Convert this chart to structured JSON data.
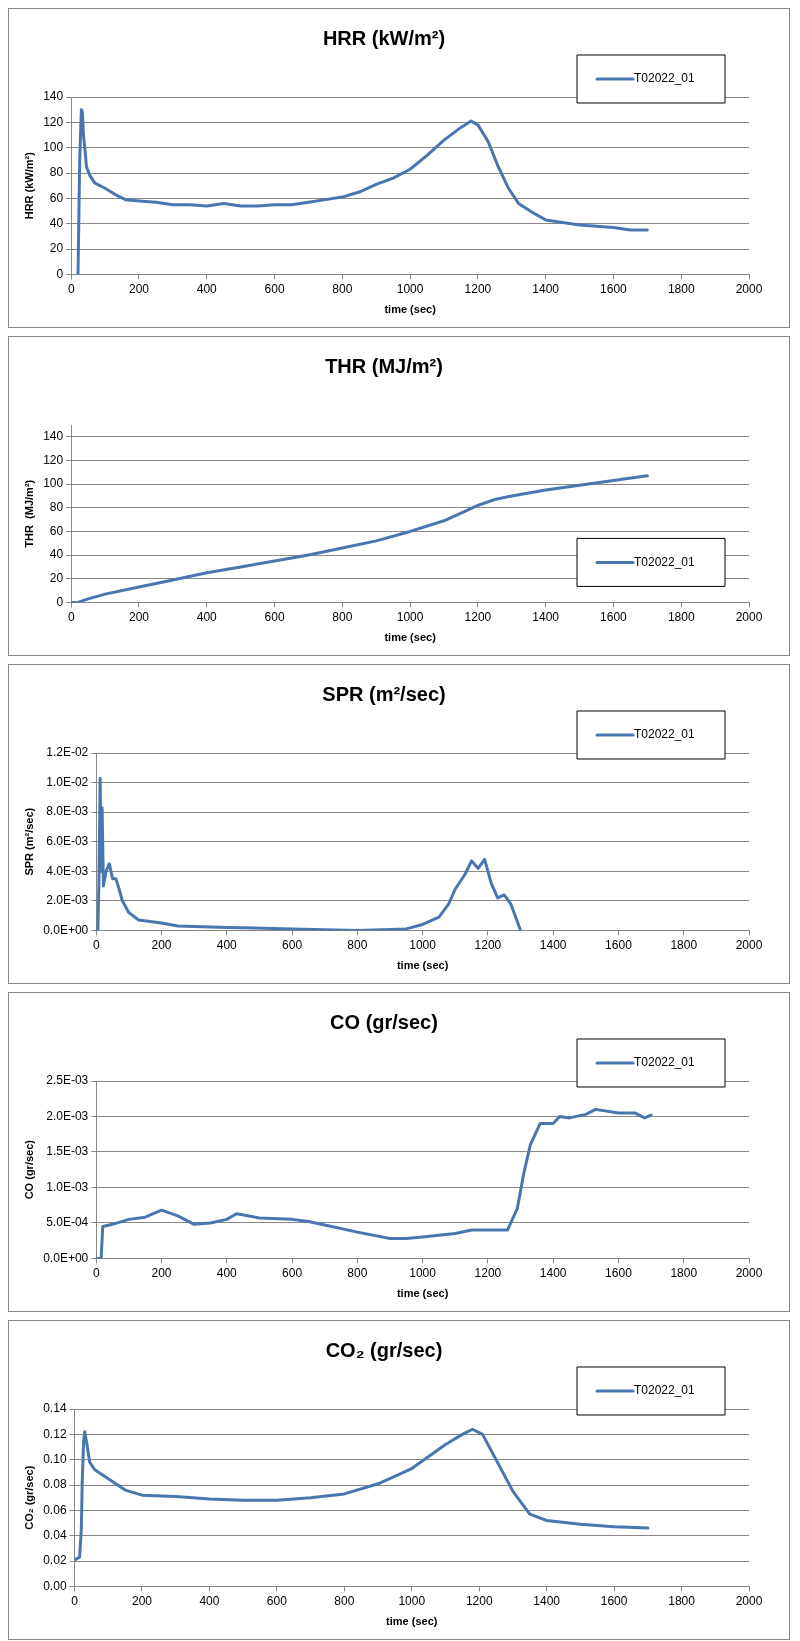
{
  "chart_data": [
    {
      "type": "line",
      "title": "HRR (kW/m²)",
      "xlabel": "time (sec)",
      "ylabel": "HRR (kW/m²)",
      "xlim": [
        0,
        2000
      ],
      "xticks": [
        0,
        200,
        400,
        600,
        800,
        1000,
        1200,
        1400,
        1600,
        1800,
        2000
      ],
      "ylim": [
        0,
        140
      ],
      "yticks": [
        0,
        20,
        40,
        60,
        80,
        100,
        120,
        140
      ],
      "grid": "y",
      "legend": "top right",
      "marker": "none",
      "line_style": "solid",
      "series": [
        {
          "name": "T02022_01",
          "color": "#4a76b0",
          "x": [
            20,
            22,
            25,
            28,
            30,
            33,
            36,
            40,
            45,
            55,
            70,
            100,
            130,
            160,
            200,
            250,
            300,
            350,
            400,
            450,
            500,
            550,
            600,
            650,
            700,
            750,
            800,
            850,
            900,
            950,
            1000,
            1050,
            1100,
            1150,
            1180,
            1200,
            1230,
            1260,
            1290,
            1320,
            1360,
            1400,
            1450,
            1500,
            1550,
            1600,
            1650,
            1700
          ],
          "values": [
            0,
            35,
            90,
            115,
            130,
            128,
            110,
            100,
            85,
            78,
            72,
            68,
            63,
            59,
            58,
            57,
            55,
            55,
            54,
            56,
            54,
            54,
            55,
            55,
            57,
            59,
            61,
            65,
            71,
            76,
            83,
            94,
            106,
            116,
            121,
            118,
            105,
            85,
            68,
            56,
            49,
            43,
            41,
            39,
            38,
            37,
            35,
            35
          ]
        }
      ]
    },
    {
      "type": "line",
      "title": "THR (MJ/m²)",
      "xlabel": "time (sec)",
      "ylabel": "THR  (MJ/m²)",
      "xlim": [
        0,
        2000
      ],
      "xticks": [
        0,
        200,
        400,
        600,
        800,
        1000,
        1200,
        1400,
        1600,
        1800,
        2000
      ],
      "ylim": [
        0,
        150
      ],
      "yticks": [
        0,
        20,
        40,
        60,
        80,
        100,
        120,
        140
      ],
      "grid": "y",
      "legend": "bottom right",
      "marker": "none",
      "line_style": "solid",
      "series": [
        {
          "name": "T02022_01",
          "color": "#4a76b0",
          "x": [
            0,
            20,
            50,
            100,
            200,
            300,
            400,
            500,
            600,
            700,
            800,
            900,
            1000,
            1100,
            1200,
            1250,
            1300,
            1400,
            1500,
            1600,
            1700
          ],
          "values": [
            0,
            0,
            3,
            7,
            13,
            19,
            25,
            30,
            35,
            40,
            46,
            52,
            60,
            69,
            82,
            87,
            90,
            95,
            99,
            103,
            107
          ]
        }
      ]
    },
    {
      "type": "line",
      "title": "SPR (m²/sec)",
      "xlabel": "time (sec)",
      "ylabel": "SPR (m²/sec)",
      "xlim": [
        0,
        2000
      ],
      "xticks": [
        0,
        200,
        400,
        600,
        800,
        1000,
        1200,
        1400,
        1600,
        1800,
        2000
      ],
      "ylim": [
        0,
        0.012
      ],
      "yticks": [
        {
          "value": 0,
          "label": "0.0E+00"
        },
        {
          "value": 0.002,
          "label": "2.0E-03"
        },
        {
          "value": 0.004,
          "label": "4.0E-03"
        },
        {
          "value": 0.006,
          "label": "6.0E-03"
        },
        {
          "value": 0.008,
          "label": "8.0E-03"
        },
        {
          "value": 0.01,
          "label": "1.0E-02"
        },
        {
          "value": 0.012,
          "label": "1.2E-02"
        }
      ],
      "grid": "y",
      "legend": "top right",
      "marker": "none",
      "line_style": "solid",
      "series": [
        {
          "name": "T02022_01",
          "color": "#4a76b0",
          "x": [
            5,
            8,
            12,
            15,
            18,
            22,
            30,
            40,
            50,
            60,
            70,
            80,
            100,
            130,
            200,
            250,
            400,
            600,
            800,
            950,
            1000,
            1050,
            1080,
            1100,
            1130,
            1150,
            1170,
            1190,
            1210,
            1230,
            1250,
            1270,
            1290,
            1300
          ],
          "values": [
            0,
            0.003,
            0.0103,
            0.004,
            0.0083,
            0.003,
            0.004,
            0.0045,
            0.0035,
            0.0035,
            0.0028,
            0.002,
            0.0012,
            0.0007,
            0.0005,
            0.0003,
            0.0002,
            0.0001,
            0,
            0.0001,
            0.0004,
            0.0009,
            0.0018,
            0.0028,
            0.0038,
            0.0047,
            0.0042,
            0.0048,
            0.0032,
            0.0022,
            0.0024,
            0.0018,
            0.0006,
            0
          ]
        }
      ]
    },
    {
      "type": "line",
      "title": "CO (gr/sec)",
      "xlabel": "time (sec)",
      "ylabel": "CO (gr/sec)",
      "xlim": [
        0,
        2000
      ],
      "xticks": [
        0,
        200,
        400,
        600,
        800,
        1000,
        1200,
        1400,
        1600,
        1800,
        2000
      ],
      "ylim": [
        0,
        0.0025
      ],
      "yticks": [
        {
          "value": 0,
          "label": "0.0E+00"
        },
        {
          "value": 0.0005,
          "label": "5.0E-04"
        },
        {
          "value": 0.001,
          "label": "1.0E-03"
        },
        {
          "value": 0.0015,
          "label": "1.5E-03"
        },
        {
          "value": 0.002,
          "label": "2.0E-03"
        },
        {
          "value": 0.0025,
          "label": "2.5E-03"
        }
      ],
      "grid": "y",
      "legend": "top right",
      "marker": "none",
      "line_style": "solid",
      "series": [
        {
          "name": "T02022_01",
          "color": "#4a76b0",
          "x": [
            0,
            15,
            20,
            50,
            100,
            150,
            200,
            250,
            300,
            350,
            400,
            430,
            500,
            600,
            650,
            700,
            800,
            900,
            950,
            1000,
            1100,
            1150,
            1200,
            1260,
            1290,
            1310,
            1330,
            1360,
            1400,
            1420,
            1450,
            1500,
            1530,
            1600,
            1650,
            1680,
            1700
          ],
          "values": [
            0,
            0,
            0.00045,
            0.00048,
            0.00055,
            0.00058,
            0.00068,
            0.0006,
            0.00048,
            0.0005,
            0.00055,
            0.00063,
            0.00057,
            0.00055,
            0.00052,
            0.00047,
            0.00037,
            0.00028,
            0.00028,
            0.0003,
            0.00035,
            0.0004,
            0.0004,
            0.0004,
            0.0007,
            0.0012,
            0.0016,
            0.0019,
            0.0019,
            0.002,
            0.00198,
            0.00203,
            0.0021,
            0.00205,
            0.00205,
            0.00198,
            0.00202
          ]
        }
      ]
    },
    {
      "type": "line",
      "title": "CO₂ (gr/sec)",
      "xlabel": "time (sec)",
      "ylabel": "CO₂ (gr/sec)",
      "xlim": [
        0,
        2000
      ],
      "xticks": [
        0,
        200,
        400,
        600,
        800,
        1000,
        1200,
        1400,
        1600,
        1800,
        2000
      ],
      "ylim": [
        0,
        0.14
      ],
      "yticks": [
        {
          "value": 0,
          "label": "0.00"
        },
        {
          "value": 0.02,
          "label": "0.02"
        },
        {
          "value": 0.04,
          "label": "0.04"
        },
        {
          "value": 0.06,
          "label": "0.06"
        },
        {
          "value": 0.08,
          "label": "0.08"
        },
        {
          "value": 0.1,
          "label": "0.10"
        },
        {
          "value": 0.12,
          "label": "0.12"
        },
        {
          "value": 0.14,
          "label": "0.14"
        }
      ],
      "grid": "y",
      "legend": "top right",
      "marker": "none",
      "line_style": "solid",
      "series": [
        {
          "name": "T02022_01",
          "color": "#4a76b0",
          "x": [
            0,
            15,
            20,
            23,
            27,
            30,
            35,
            45,
            60,
            100,
            150,
            200,
            300,
            400,
            500,
            600,
            700,
            800,
            900,
            1000,
            1100,
            1150,
            1180,
            1210,
            1250,
            1300,
            1350,
            1400,
            1500,
            1600,
            1700
          ],
          "values": [
            0.021,
            0.023,
            0.045,
            0.085,
            0.115,
            0.122,
            0.115,
            0.098,
            0.092,
            0.085,
            0.076,
            0.072,
            0.071,
            0.069,
            0.068,
            0.068,
            0.07,
            0.073,
            0.081,
            0.093,
            0.112,
            0.12,
            0.124,
            0.12,
            0.1,
            0.075,
            0.057,
            0.052,
            0.049,
            0.047,
            0.046
          ]
        }
      ]
    }
  ]
}
